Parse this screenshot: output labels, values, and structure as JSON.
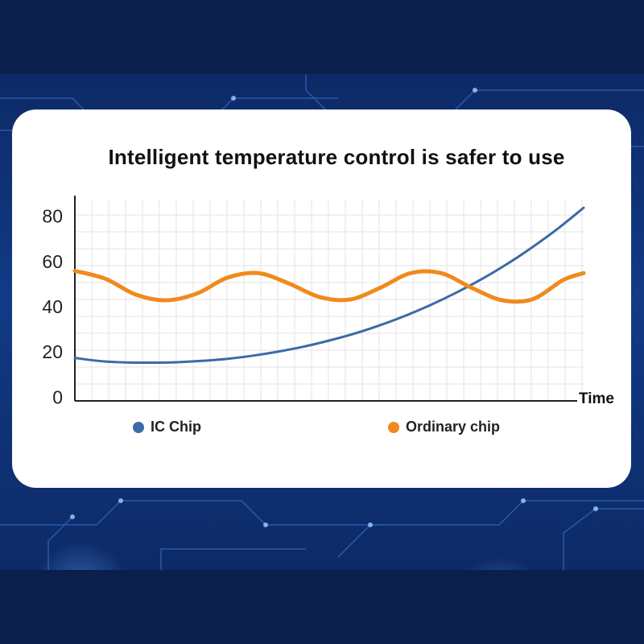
{
  "chart_data": {
    "type": "line",
    "title": "Intelligent temperature control is safer to use",
    "xlabel": "Time",
    "ylabel": "",
    "yticks": [
      0,
      20,
      40,
      60,
      80
    ],
    "ylim": [
      -2,
      87
    ],
    "xlim": [
      0,
      10
    ],
    "grid": true,
    "legend_position": "bottom",
    "series": [
      {
        "name": "IC Chip",
        "color": "#3b6aa8",
        "x": [
          0,
          0.5,
          1,
          1.5,
          2,
          2.5,
          3,
          3.5,
          4,
          4.5,
          5,
          5.5,
          6,
          6.5,
          7,
          7.5,
          8,
          8.5,
          9,
          9.5,
          10
        ],
        "values": [
          17,
          15.6,
          15,
          14.9,
          15.1,
          15.7,
          16.6,
          18,
          19.8,
          22,
          24.7,
          27.8,
          31.5,
          35.7,
          40.5,
          45.9,
          51.9,
          58.6,
          66.1,
          74.3,
          83.4
        ]
      },
      {
        "name": "Ordinary chip",
        "color": "#f08a1c",
        "x": [
          0,
          0.6,
          1.2,
          1.8,
          2.4,
          3.0,
          3.6,
          4.2,
          4.8,
          5.4,
          6.0,
          6.6,
          7.2,
          7.8,
          8.4,
          9.0,
          9.6,
          10
        ],
        "values": [
          55.5,
          52,
          45,
          42.5,
          45.5,
          52.5,
          54.5,
          50,
          44,
          42.8,
          48,
          54.5,
          54.5,
          48,
          42.5,
          43,
          51.5,
          54.5
        ]
      }
    ]
  }
}
